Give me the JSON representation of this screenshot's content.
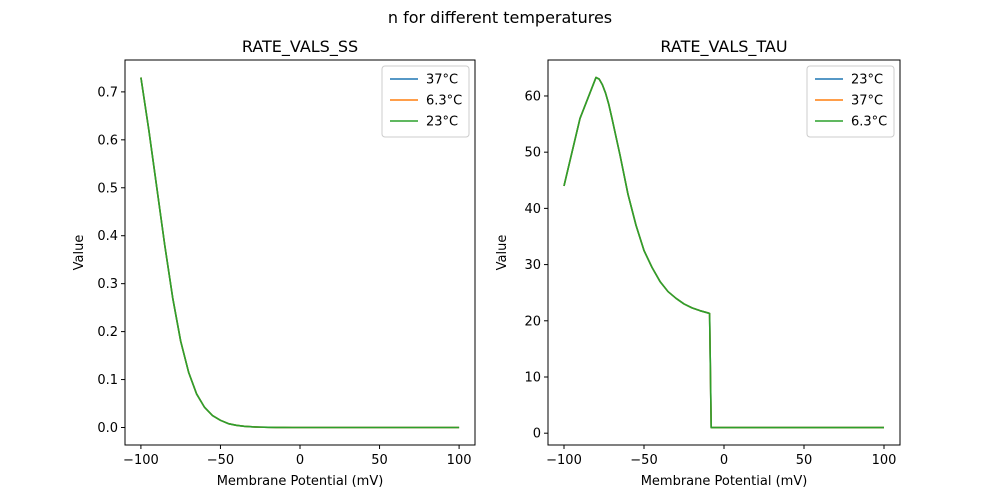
{
  "figure": {
    "suptitle": "n for different temperatures"
  },
  "chart_data": [
    {
      "type": "line",
      "title": "RATE_VALS_SS",
      "xlabel": "Membrane Potential (mV)",
      "ylabel": "Value",
      "xlim": [
        -110,
        110
      ],
      "ylim": [
        -0.0365,
        0.7665
      ],
      "xticks": [
        -100,
        -50,
        0,
        50,
        100
      ],
      "xtick_labels": [
        "−100",
        "−50",
        "0",
        "50",
        "100"
      ],
      "yticks": [
        0.0,
        0.1,
        0.2,
        0.3,
        0.4,
        0.5,
        0.6,
        0.7
      ],
      "ytick_labels": [
        "0.0",
        "0.1",
        "0.2",
        "0.3",
        "0.4",
        "0.5",
        "0.6",
        "0.7"
      ],
      "grid": false,
      "legend_position": "top-right",
      "x": [
        -100,
        -95,
        -90,
        -85,
        -80,
        -75,
        -70,
        -65,
        -60,
        -55,
        -50,
        -45,
        -40,
        -35,
        -30,
        -25,
        -20,
        -15,
        -10,
        -5,
        0,
        10,
        20,
        30,
        40,
        50,
        60,
        70,
        80,
        90,
        100
      ],
      "series": [
        {
          "name": "37°C",
          "color": "#1f77b4",
          "values": [
            0.73,
            0.62,
            0.5,
            0.38,
            0.27,
            0.18,
            0.115,
            0.07,
            0.042,
            0.025,
            0.015,
            0.008,
            0.0045,
            0.0025,
            0.0014,
            0.0008,
            0.0004,
            0.0002,
            0.0001,
            0.0,
            0.0,
            0.0,
            0.0,
            0.0,
            0.0,
            0.0,
            0.0,
            0.0,
            0.0,
            0.0,
            0.0
          ]
        },
        {
          "name": "6.3°C",
          "color": "#ff7f0e",
          "values": [
            0.73,
            0.62,
            0.5,
            0.38,
            0.27,
            0.18,
            0.115,
            0.07,
            0.042,
            0.025,
            0.015,
            0.008,
            0.0045,
            0.0025,
            0.0014,
            0.0008,
            0.0004,
            0.0002,
            0.0001,
            0.0,
            0.0,
            0.0,
            0.0,
            0.0,
            0.0,
            0.0,
            0.0,
            0.0,
            0.0,
            0.0,
            0.0
          ]
        },
        {
          "name": "23°C",
          "color": "#2ca02c",
          "values": [
            0.73,
            0.62,
            0.5,
            0.38,
            0.27,
            0.18,
            0.115,
            0.07,
            0.042,
            0.025,
            0.015,
            0.008,
            0.0045,
            0.0025,
            0.0014,
            0.0008,
            0.0004,
            0.0002,
            0.0001,
            0.0,
            0.0,
            0.0,
            0.0,
            0.0,
            0.0,
            0.0,
            0.0,
            0.0,
            0.0,
            0.0,
            0.0
          ]
        }
      ]
    },
    {
      "type": "line",
      "title": "RATE_VALS_TAU",
      "xlabel": "Membrane Potential (mV)",
      "ylabel": "Value",
      "xlim": [
        -110,
        110
      ],
      "ylim": [
        -2.1,
        66.4
      ],
      "xticks": [
        -100,
        -50,
        0,
        50,
        100
      ],
      "xtick_labels": [
        "−100",
        "−50",
        "0",
        "50",
        "100"
      ],
      "yticks": [
        0,
        10,
        20,
        30,
        40,
        50,
        60
      ],
      "ytick_labels": [
        "0",
        "10",
        "20",
        "30",
        "40",
        "50",
        "60"
      ],
      "grid": false,
      "legend_position": "top-right",
      "x": [
        -100,
        -90,
        -80,
        -78,
        -76,
        -74,
        -72,
        -70,
        -65,
        -60,
        -55,
        -50,
        -45,
        -40,
        -35,
        -30,
        -25,
        -20,
        -15,
        -10,
        -9,
        -8,
        0,
        20,
        40,
        60,
        80,
        100
      ],
      "series": [
        {
          "name": "23°C",
          "color": "#1f77b4",
          "values": [
            44.0,
            56.0,
            63.3,
            63.0,
            62.0,
            60.5,
            58.5,
            56.0,
            49.5,
            42.5,
            37.0,
            32.5,
            29.5,
            27.0,
            25.2,
            24.0,
            23.0,
            22.3,
            21.8,
            21.4,
            21.3,
            1.0,
            1.0,
            1.0,
            1.0,
            1.0,
            1.0,
            1.0
          ]
        },
        {
          "name": "37°C",
          "color": "#ff7f0e",
          "values": [
            44.0,
            56.0,
            63.3,
            63.0,
            62.0,
            60.5,
            58.5,
            56.0,
            49.5,
            42.5,
            37.0,
            32.5,
            29.5,
            27.0,
            25.2,
            24.0,
            23.0,
            22.3,
            21.8,
            21.4,
            21.3,
            1.0,
            1.0,
            1.0,
            1.0,
            1.0,
            1.0,
            1.0
          ]
        },
        {
          "name": "6.3°C",
          "color": "#2ca02c",
          "values": [
            44.0,
            56.0,
            63.3,
            63.0,
            62.0,
            60.5,
            58.5,
            56.0,
            49.5,
            42.5,
            37.0,
            32.5,
            29.5,
            27.0,
            25.2,
            24.0,
            23.0,
            22.3,
            21.8,
            21.4,
            21.3,
            1.0,
            1.0,
            1.0,
            1.0,
            1.0,
            1.0,
            1.0
          ]
        }
      ]
    }
  ]
}
